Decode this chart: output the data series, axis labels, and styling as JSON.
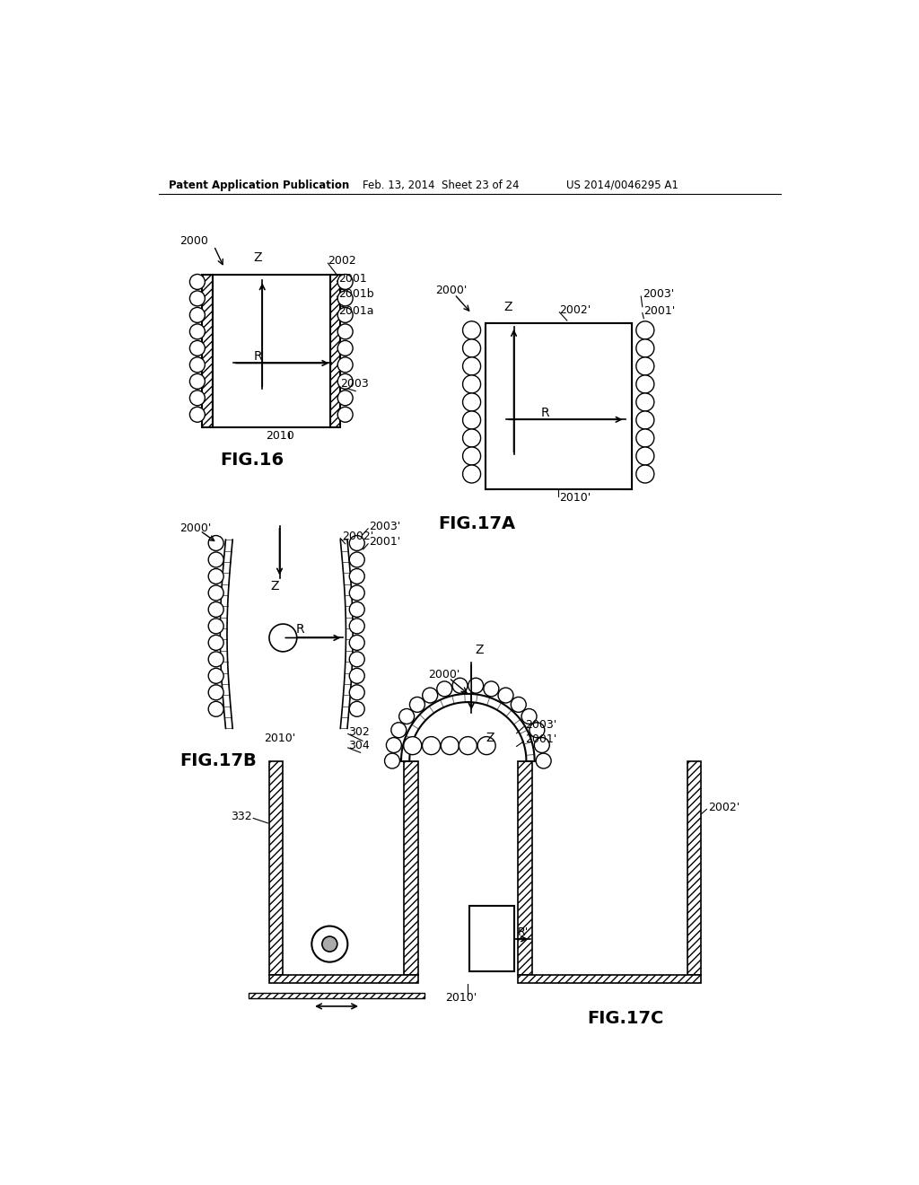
{
  "background_color": "#ffffff",
  "header_text": "Patent Application Publication",
  "header_date": "Feb. 13, 2014  Sheet 23 of 24",
  "header_patent": "US 2014/0046295 A1",
  "fig16_label": "FIG.16",
  "fig17a_label": "FIG.17A",
  "fig17b_label": "FIG.17B",
  "fig17c_label": "FIG.17C"
}
